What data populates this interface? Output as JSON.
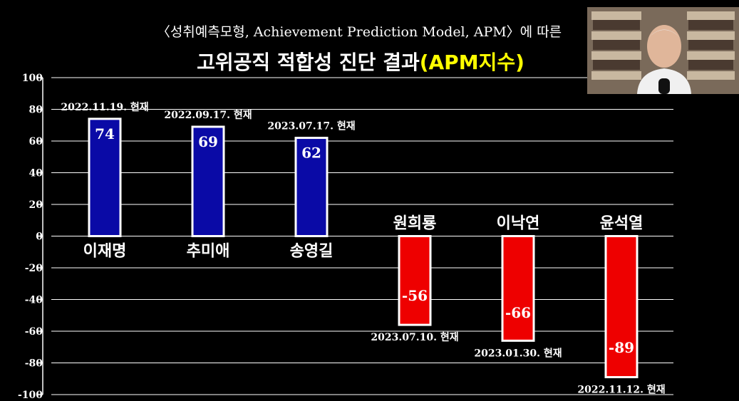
{
  "header": {
    "subtitle": "〈성취예측모형, Achievement Prediction Model, APM〉에 따른",
    "title_main": "고위공직 적합성 진단 결과",
    "title_highlight": "(APM지수)"
  },
  "colors": {
    "positive": "#0a0aa6",
    "negative": "#ee0000",
    "highlight": "#ffff00"
  },
  "chart_data": {
    "type": "bar",
    "categories": [
      "이재명",
      "추미애",
      "송영길",
      "원희룡",
      "이낙연",
      "윤석열"
    ],
    "values": [
      74,
      69,
      62,
      -56,
      -66,
      -89
    ],
    "dates": [
      "2022.11.19. 현재",
      "2022.09.17. 현재",
      "2023.07.17. 현재",
      "2023.07.10. 현재",
      "2023.01.30. 현재",
      "2022.11.12. 현재"
    ],
    "yticks": [
      "100",
      "80",
      "60",
      "40",
      "20",
      "0",
      "-20",
      "-40",
      "-60",
      "-80",
      "-100"
    ],
    "ylim": [
      -100,
      100
    ],
    "grid": true
  }
}
